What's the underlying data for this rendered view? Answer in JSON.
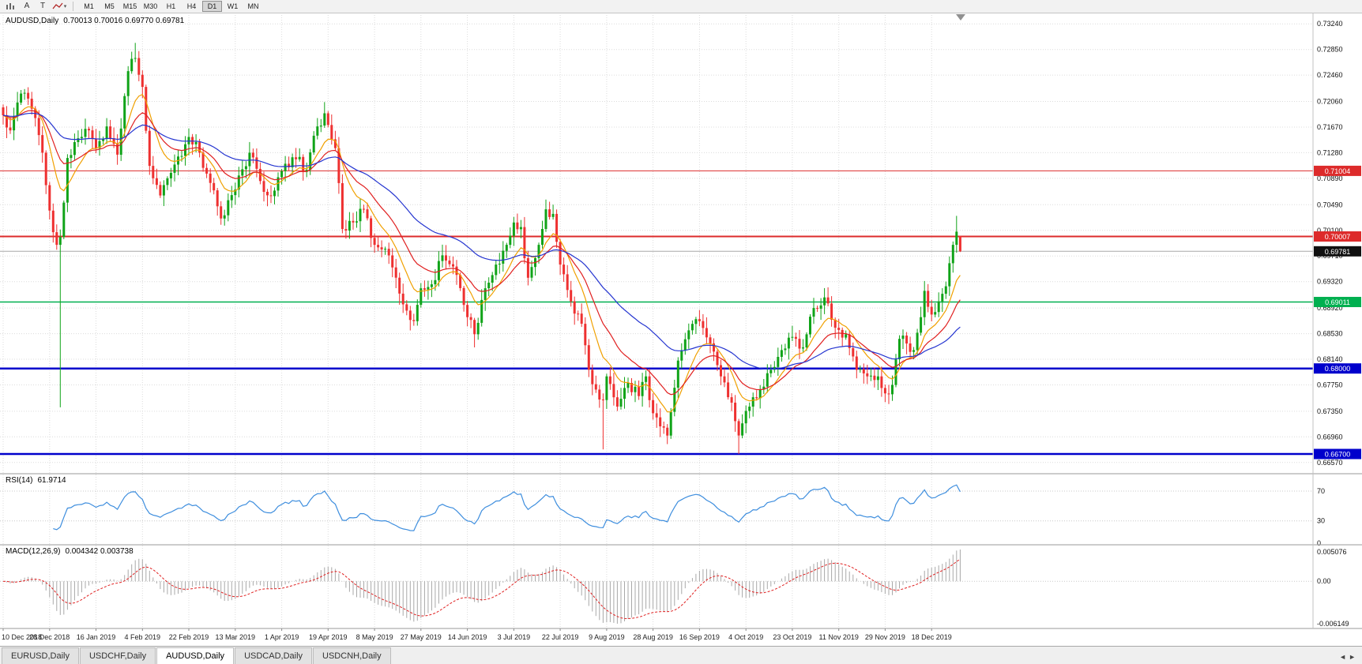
{
  "toolbar": {
    "tool_buttons": [
      "A",
      "T"
    ],
    "timeframes": [
      "M1",
      "M5",
      "M15",
      "M30",
      "H1",
      "H4",
      "D1",
      "W1",
      "MN"
    ],
    "active_timeframe": "D1"
  },
  "main_chart": {
    "title": "AUDUSD,Daily",
    "ohlc_text": "0.70013 0.70016 0.69770 0.69781"
  },
  "rsi_panel": {
    "label": "RSI(14)",
    "value": "61.9714",
    "axis": [
      {
        "label": "70",
        "value": 70
      },
      {
        "label": "30",
        "value": 30
      },
      {
        "label": "0",
        "value": 0
      }
    ]
  },
  "macd_panel": {
    "label": "MACD(12,26,9)",
    "values": "0.004342 0.003738",
    "axis_top": "0.005076",
    "axis_zero": "0.00",
    "axis_bottom": "-0.006149"
  },
  "tabs": {
    "items": [
      "EURUSD,Daily",
      "USDCHF,Daily",
      "AUDUSD,Daily",
      "USDCAD,Daily",
      "USDCNH,Daily"
    ],
    "active": "AUDUSD,Daily"
  },
  "chart_data": {
    "type": "candlestick",
    "symbol": "AUDUSD",
    "timeframe": "Daily",
    "n_candles": 269,
    "last_candle": {
      "open": 0.70013,
      "high": 0.70016,
      "low": 0.6977,
      "close": 0.69781
    },
    "price_range": {
      "top": 0.7341,
      "bottom": 0.664
    },
    "price_axis_ticks": [
      0.7324,
      0.7285,
      0.7246,
      0.7206,
      0.7167,
      0.7128,
      0.7089,
      0.7049,
      0.701,
      0.6971,
      0.6932,
      0.6892,
      0.6853,
      0.6814,
      0.6775,
      0.6735,
      0.6696,
      0.6657
    ],
    "x_axis_dates": [
      "10 Dec 2018",
      "28 Dec 2018",
      "16 Jan 2019",
      "4 Feb 2019",
      "22 Feb 2019",
      "13 Mar 2019",
      "1 Apr 2019",
      "19 Apr 2019",
      "8 May 2019",
      "27 May 2019",
      "14 Jun 2019",
      "3 Jul 2019",
      "22 Jul 2019",
      "9 Aug 2019",
      "28 Aug 2019",
      "16 Sep 2019",
      "4 Oct 2019",
      "23 Oct 2019",
      "11 Nov 2019",
      "29 Nov 2019",
      "18 Dec 2019"
    ],
    "date_label_interval": 13,
    "price_anchors": [
      [
        0,
        0.7185
      ],
      [
        2,
        0.7162
      ],
      [
        5,
        0.7218
      ],
      [
        8,
        0.7195
      ],
      [
        11,
        0.7128
      ],
      [
        13,
        0.704
      ],
      [
        15,
        0.6988
      ],
      [
        16,
        0.7
      ],
      [
        18,
        0.712
      ],
      [
        21,
        0.715
      ],
      [
        24,
        0.7162
      ],
      [
        26,
        0.7135
      ],
      [
        29,
        0.7168
      ],
      [
        32,
        0.7125
      ],
      [
        35,
        0.7252
      ],
      [
        37,
        0.7272
      ],
      [
        39,
        0.7228
      ],
      [
        41,
        0.7108
      ],
      [
        44,
        0.7063
      ],
      [
        48,
        0.711
      ],
      [
        52,
        0.7152
      ],
      [
        55,
        0.7128
      ],
      [
        58,
        0.7082
      ],
      [
        61,
        0.7028
      ],
      [
        65,
        0.7072
      ],
      [
        69,
        0.7128
      ],
      [
        72,
        0.7085
      ],
      [
        75,
        0.7062
      ],
      [
        78,
        0.71
      ],
      [
        82,
        0.7118
      ],
      [
        85,
        0.7102
      ],
      [
        88,
        0.7168
      ],
      [
        90,
        0.7188
      ],
      [
        93,
        0.7135
      ],
      [
        95,
        0.7012
      ],
      [
        98,
        0.7022
      ],
      [
        101,
        0.7042
      ],
      [
        104,
        0.6988
      ],
      [
        107,
        0.6982
      ],
      [
        110,
        0.6938
      ],
      [
        113,
        0.6888
      ],
      [
        115,
        0.6872
      ],
      [
        117,
        0.6922
      ],
      [
        120,
        0.6928
      ],
      [
        123,
        0.6972
      ],
      [
        126,
        0.6955
      ],
      [
        130,
        0.6878
      ],
      [
        132,
        0.6852
      ],
      [
        135,
        0.6922
      ],
      [
        138,
        0.6958
      ],
      [
        141,
        0.6988
      ],
      [
        143,
        0.7022
      ],
      [
        145,
        0.7015
      ],
      [
        147,
        0.6938
      ],
      [
        150,
        0.6988
      ],
      [
        152,
        0.7042
      ],
      [
        154,
        0.7035
      ],
      [
        156,
        0.6958
      ],
      [
        159,
        0.6902
      ],
      [
        162,
        0.6868
      ],
      [
        164,
        0.6798
      ],
      [
        166,
        0.6768
      ],
      [
        168,
        0.6752
      ],
      [
        169,
        0.6788
      ],
      [
        172,
        0.6742
      ],
      [
        175,
        0.6778
      ],
      [
        178,
        0.6758
      ],
      [
        180,
        0.6788
      ],
      [
        182,
        0.6732
      ],
      [
        184,
        0.6712
      ],
      [
        186,
        0.6698
      ],
      [
        189,
        0.6812
      ],
      [
        192,
        0.6858
      ],
      [
        195,
        0.6872
      ],
      [
        198,
        0.6838
      ],
      [
        201,
        0.6788
      ],
      [
        204,
        0.6748
      ],
      [
        206,
        0.6698
      ],
      [
        209,
        0.6742
      ],
      [
        212,
        0.6768
      ],
      [
        215,
        0.6798
      ],
      [
        218,
        0.6828
      ],
      [
        221,
        0.6848
      ],
      [
        224,
        0.6832
      ],
      [
        227,
        0.6892
      ],
      [
        230,
        0.6908
      ],
      [
        233,
        0.6862
      ],
      [
        236,
        0.6852
      ],
      [
        239,
        0.6798
      ],
      [
        242,
        0.6788
      ],
      [
        245,
        0.6788
      ],
      [
        247,
        0.6762
      ],
      [
        249,
        0.6775
      ],
      [
        251,
        0.6845
      ],
      [
        253,
        0.6838
      ],
      [
        255,
        0.6828
      ],
      [
        257,
        0.6878
      ],
      [
        258,
        0.6918
      ],
      [
        260,
        0.6882
      ],
      [
        262,
        0.6902
      ],
      [
        264,
        0.6925
      ],
      [
        266,
        0.6988
      ],
      [
        267,
        0.7008
      ],
      [
        268,
        0.69781
      ]
    ],
    "overrides": {
      "16": {
        "l": 0.6741
      },
      "37": {
        "h": 0.7295
      },
      "90": {
        "h": 0.7205
      },
      "115": {
        "l": 0.6865
      },
      "132": {
        "l": 0.6832
      },
      "168": {
        "l": 0.6677
      },
      "186": {
        "l": 0.6685
      },
      "206": {
        "l": 0.667
      },
      "267": {
        "h": 0.7032
      },
      "268": {
        "o": 0.70013,
        "h": 0.70016,
        "l": 0.6977,
        "c": 0.69781
      }
    },
    "levels": [
      {
        "price": 0.71004,
        "label": "0.71004",
        "color": "#DD2B2B",
        "width": 1
      },
      {
        "price": 0.70007,
        "label": "0.70007",
        "color": "#DD2B2B",
        "width": 2
      },
      {
        "price": 0.69011,
        "label": "0.69011",
        "color": "#00B050",
        "width": 1.5
      },
      {
        "price": 0.68,
        "label": "0.68000",
        "color": "#0000CC",
        "width": 2.5
      },
      {
        "price": 0.667,
        "label": "0.66700",
        "color": "#0000CC",
        "width": 2.5
      }
    ],
    "current_price": {
      "value": 0.69781,
      "label": "0.69781",
      "badge_color": "#101010",
      "line_color": "#A8A8A8"
    },
    "moving_averages": [
      {
        "period": 10,
        "color": "#F0A000"
      },
      {
        "period": 20,
        "color": "#E02020"
      },
      {
        "period": 50,
        "color": "#2535D0"
      }
    ],
    "rsi": {
      "period": 14,
      "color": "#3E8EDE",
      "levels": [
        70,
        30
      ],
      "current": 61.9714
    },
    "macd": {
      "fast": 12,
      "slow": 26,
      "signal": 9,
      "histogram_color": "#A8A8A8",
      "signal_color": "#E02020",
      "current_macd": 0.004342,
      "current_signal": 0.003738
    },
    "colors": {
      "up": "#10A318",
      "down": "#EE3030",
      "grid": "#DCDCDC",
      "background": "#FFFFFF"
    }
  }
}
